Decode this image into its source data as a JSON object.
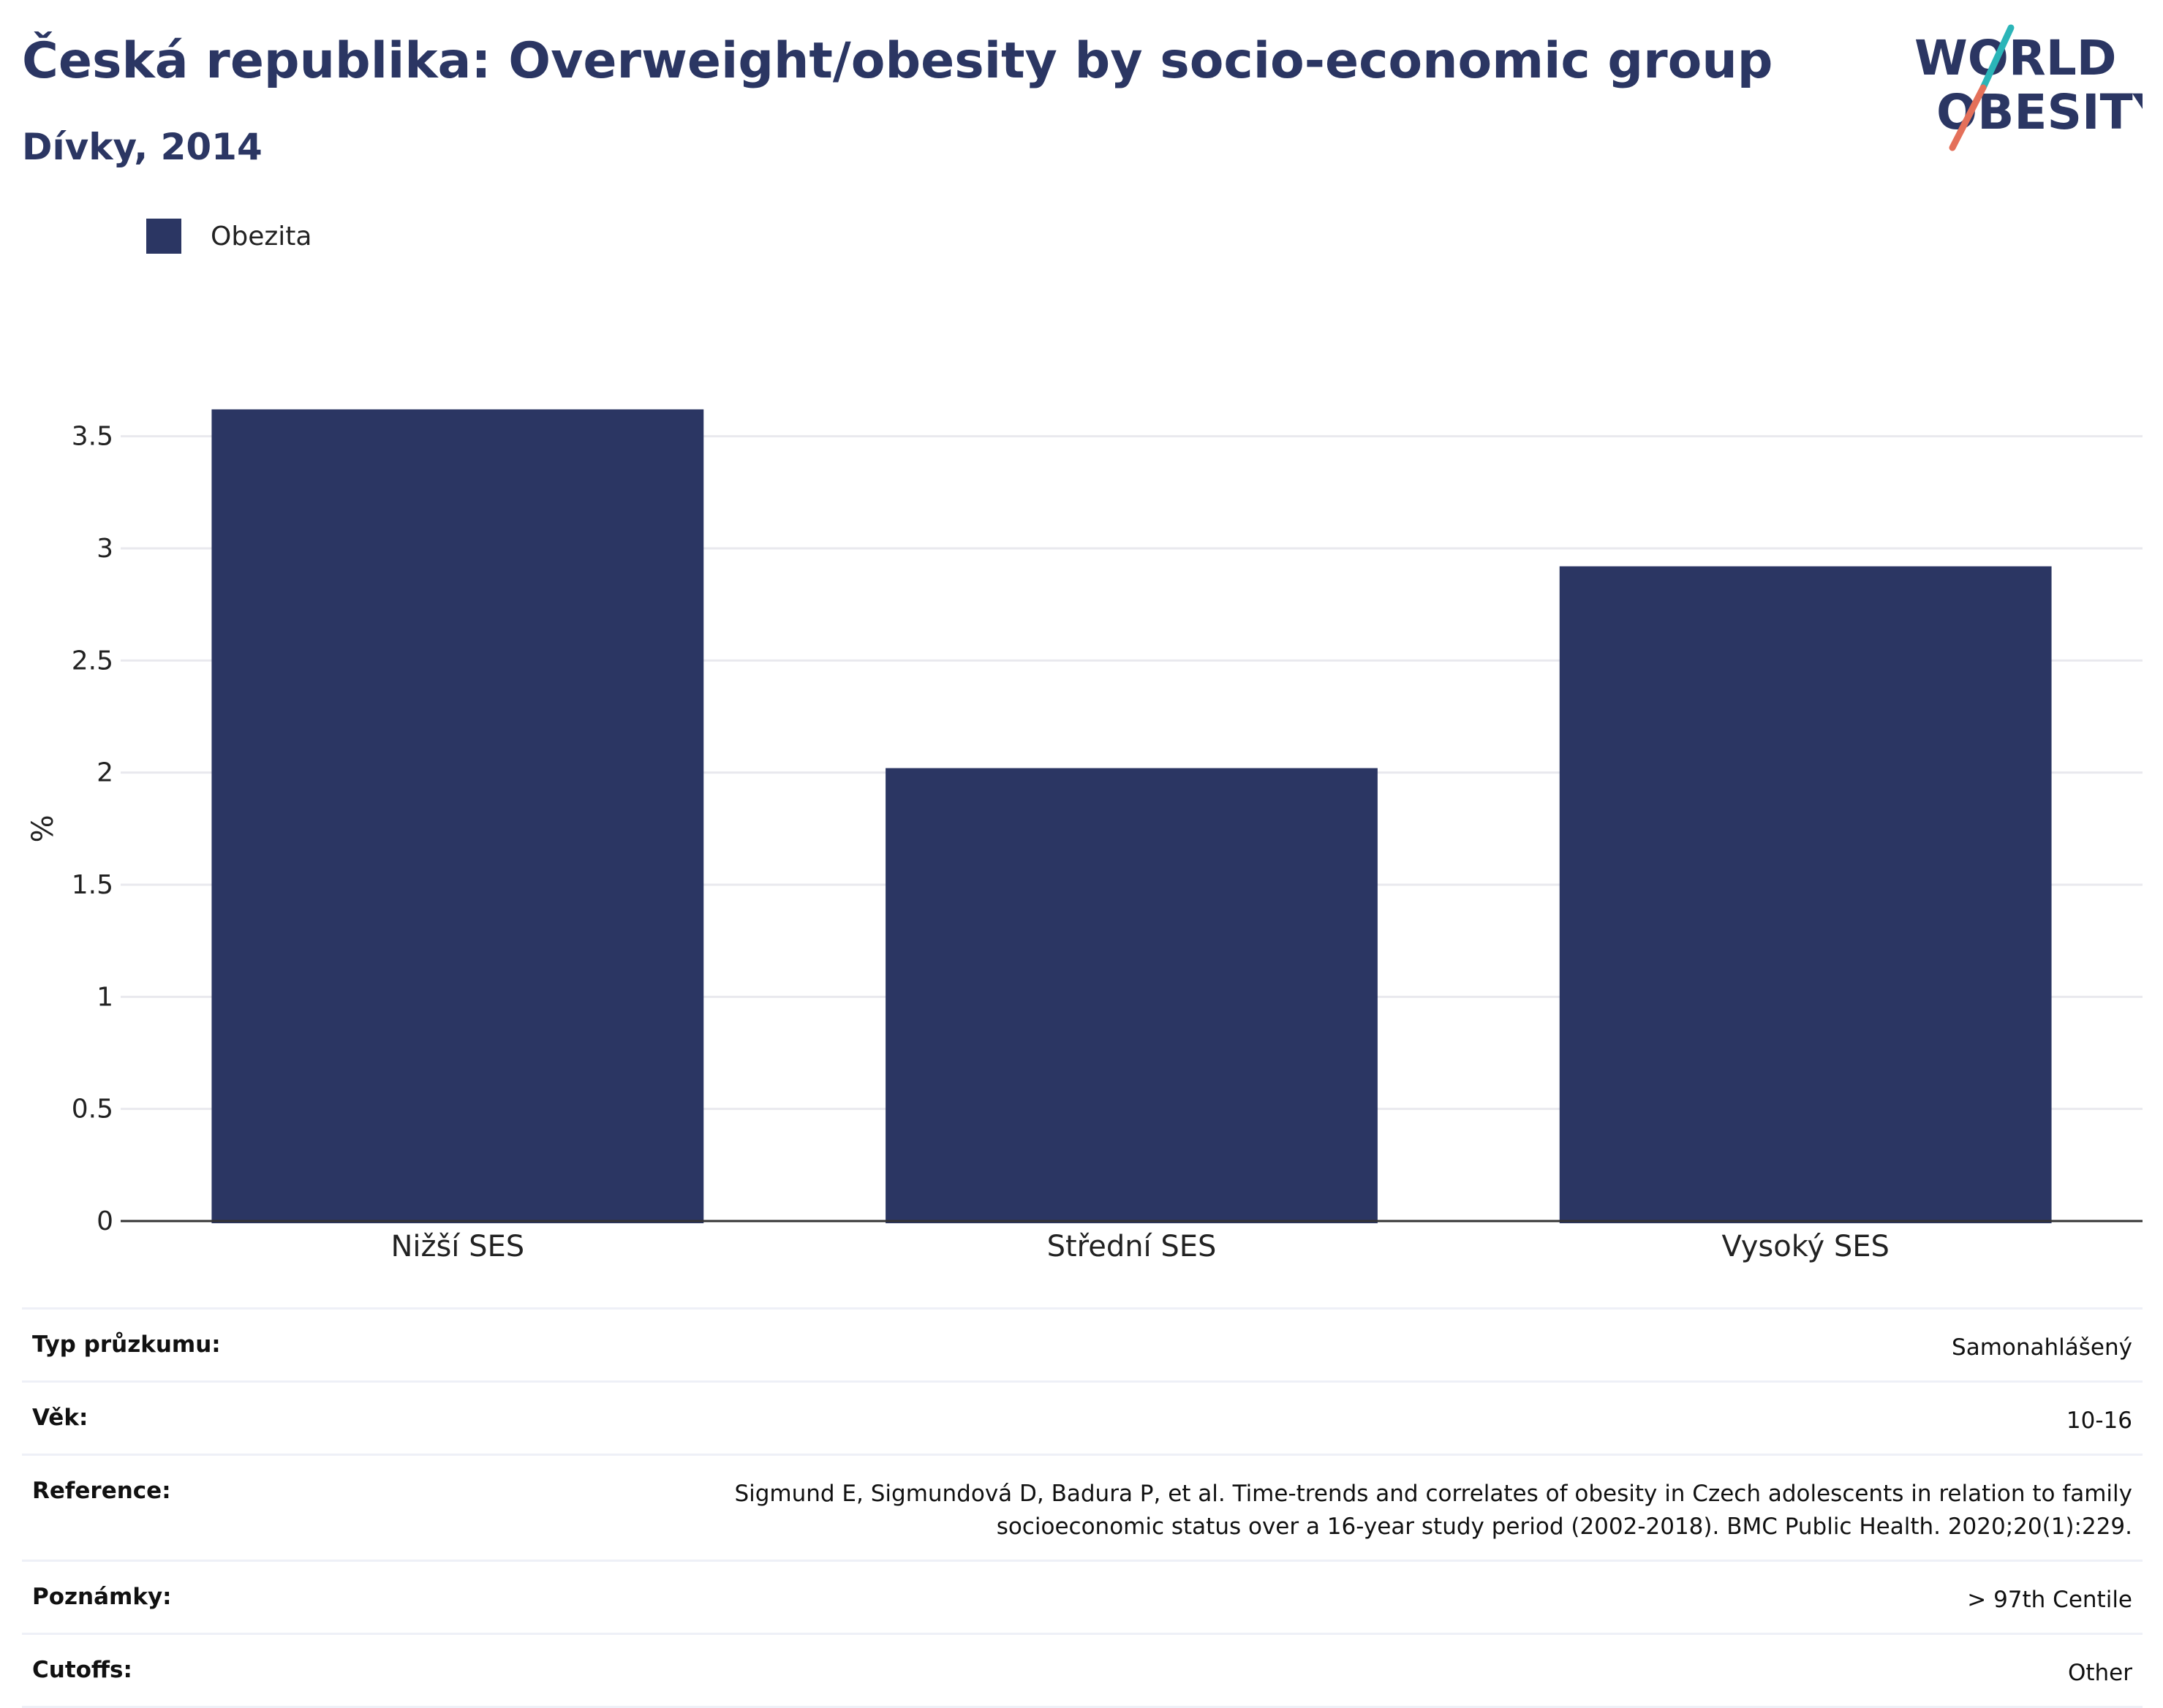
{
  "header": {
    "title": "Česká republika: Overweight/obesity by socio-economic group",
    "subtitle": "Dívky, 2014"
  },
  "logo": {
    "line1": "WORLD",
    "line2": "OBESITY",
    "text_color": "#2b3663",
    "slash_colors": [
      "#2bb5b8",
      "#e4705a"
    ]
  },
  "legend": {
    "items": [
      {
        "label": "Obezita",
        "color": "#2b3663"
      }
    ]
  },
  "chart_data": {
    "type": "bar",
    "categories": [
      "Nižší SES",
      "Střední SES",
      "Vysoký SES"
    ],
    "series": [
      {
        "name": "Obezita",
        "values": [
          3.62,
          2.02,
          2.92
        ],
        "color": "#2b3663"
      }
    ],
    "ylabel": "%",
    "xlabel": "",
    "ylim": [
      0,
      3.75
    ],
    "yticks": [
      0,
      0.5,
      1,
      1.5,
      2,
      2.5,
      3,
      3.5
    ],
    "ytick_labels": [
      "0",
      "0.5",
      "1",
      "1.5",
      "2",
      "2.5",
      "3",
      "3.5"
    ],
    "grid": true,
    "legend_position": "top-left"
  },
  "meta": [
    {
      "key": "Typ průzkumu:",
      "value": "Samonahlášený"
    },
    {
      "key": "Věk:",
      "value": "10-16"
    },
    {
      "key": "Reference:",
      "value": "Sigmund E, Sigmundová D, Badura P, et al. Time-trends and correlates of obesity in Czech adolescents in relation to family socioeconomic status over a 16-year study period (2002-2018). BMC Public Health. 2020;20(1):229."
    },
    {
      "key": "Poznámky:",
      "value": "> 97th Centile"
    },
    {
      "key": "Cutoffs:",
      "value": "Other"
    }
  ]
}
